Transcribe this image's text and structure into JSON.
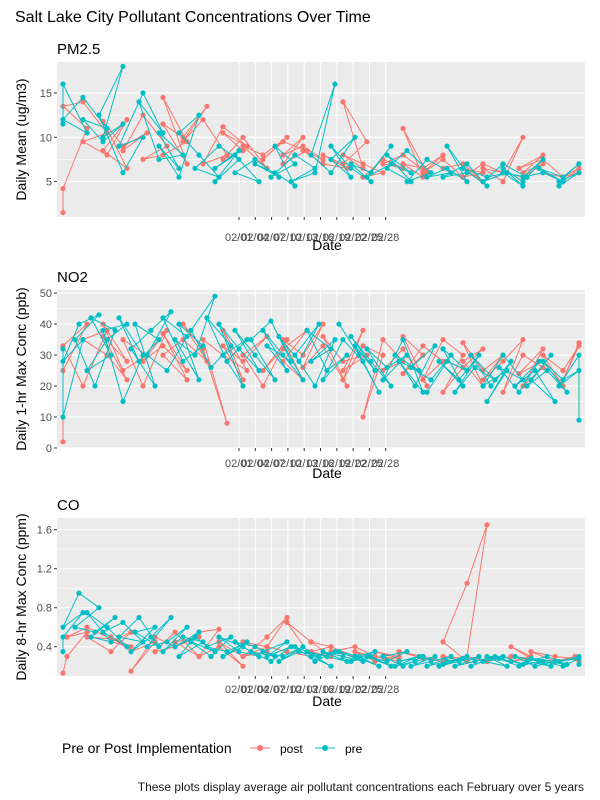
{
  "figure": {
    "title": "Salt Lake City Pollutant Concentrations Over Time",
    "caption": "These plots display average air pollutant concentrations each February over 5 years"
  },
  "legend": {
    "title": "Pre or Post Implementation",
    "entries": [
      {
        "label": "post",
        "color": "#F8766D"
      },
      {
        "label": "pre",
        "color": "#00BFC4"
      }
    ]
  },
  "colors": {
    "panel_bg": "#EBEBEB",
    "grid": "#FFFFFF",
    "post": "#F8766D",
    "pre": "#00BFC4"
  },
  "chart_data": [
    {
      "type": "line",
      "title": "PM2.5",
      "xlabel": "Date",
      "ylabel": "Daily Mean (ug/m3)",
      "ylim": [
        1,
        18.5
      ],
      "yticks": [
        5,
        10,
        15
      ],
      "x_tick_labels": [
        "02/01",
        "02/04",
        "02/07",
        "02/10",
        "02/13",
        "02/16",
        "02/19",
        "02/22",
        "02/25",
        "02/28"
      ],
      "x_tick_labels_visible": "02/0102/0402/0702/1002/1302/1602/1902/2202/2502/28",
      "n_points": 130,
      "series": [
        {
          "name": "post",
          "values": [
            1.5,
            4.2,
            11.0,
            13.5,
            14.0,
            10.5,
            9.5,
            8.0,
            12.0,
            8.5,
            6.5,
            11.8,
            9.0,
            10.5,
            8.5,
            12.5,
            9.0,
            7.5,
            8.0,
            9.5,
            14.5,
            7.0,
            11.5,
            10.0,
            13.5,
            9.5,
            12.0,
            8.0,
            7.0,
            11.2,
            9.0,
            10.5,
            8.5,
            7.5,
            10.0,
            6.5,
            9.0,
            8.0,
            10.0,
            7.5,
            9.5,
            8.5,
            7.0,
            10.0,
            8.0,
            9.0,
            7.5,
            8.5,
            7.0,
            6.5,
            8.0,
            7.0,
            9.5,
            14.0,
            6.5,
            8.0,
            7.0,
            6.0,
            5.5,
            7.5,
            6.5,
            7.0,
            8.0,
            6.0,
            11.0,
            5.5,
            7.0,
            6.5,
            8.0,
            6.0,
            7.5,
            5.5,
            6.5,
            7.0,
            5.0,
            6.5,
            6.0,
            5.5,
            7.0,
            6.0,
            6.5,
            5.0,
            10.0,
            6.0,
            5.5,
            7.0,
            6.0,
            8.0,
            6.5,
            7.5,
            5.5,
            6.0,
            5.0,
            6.5,
            5.5,
            6.0
          ]
        },
        {
          "name": "pre",
          "values": [
            11.5,
            16.0,
            10.5,
            12.0,
            14.5,
            11.0,
            12.0,
            9.5,
            11.5,
            10.0,
            18.0,
            12.5,
            6.0,
            10.0,
            9.0,
            15.0,
            10.5,
            14.0,
            7.5,
            8.0,
            10.5,
            6.5,
            9.0,
            5.5,
            12.5,
            10.5,
            8.0,
            5.5,
            6.5,
            9.0,
            7.5,
            5.0,
            8.5,
            6.5,
            8.0,
            5.0,
            6.0,
            7.5,
            5.5,
            7.0,
            6.0,
            4.5,
            9.0,
            7.0,
            5.5,
            8.0,
            6.5,
            5.0,
            6.0,
            16.0,
            8.0,
            6.0,
            10.0,
            7.5,
            5.5,
            9.0,
            6.5,
            5.0,
            7.0,
            6.0,
            9.0,
            5.5,
            7.0,
            6.0,
            8.0,
            5.0,
            6.5,
            8.5,
            6.0,
            5.0,
            7.5,
            6.0,
            5.5,
            6.5,
            5.0,
            9.0,
            6.0,
            5.5,
            7.0,
            4.5,
            6.5,
            5.5,
            6.0,
            5.0,
            7.0,
            5.5,
            6.0,
            4.5,
            6.5,
            5.0,
            7.5,
            5.5,
            6.0,
            5.0,
            6.5,
            5.5,
            7.0,
            5.0,
            6.0,
            4.5
          ]
        }
      ]
    },
    {
      "type": "line",
      "title": "NO2",
      "xlabel": "Date",
      "ylabel": "Daily 1-hr Max Conc (ppb)",
      "ylim": [
        0,
        51
      ],
      "yticks": [
        0,
        10,
        20,
        30,
        40,
        50
      ],
      "x_tick_labels": [
        "02/01",
        "02/04",
        "02/07",
        "02/10",
        "02/13",
        "02/16",
        "02/19",
        "02/22",
        "02/25",
        "02/28"
      ],
      "n_points": 130,
      "series": [
        {
          "name": "post",
          "values": [
            2,
            25,
            40,
            33,
            20,
            38,
            35,
            30,
            22,
            36,
            28,
            40,
            25,
            30,
            35,
            20,
            38,
            28,
            33,
            25,
            37,
            22,
            30,
            35,
            28,
            40,
            32,
            8,
            35,
            30,
            25,
            38,
            22,
            33,
            28,
            36,
            30,
            20,
            35,
            25,
            32,
            38,
            28,
            22,
            35,
            30,
            40,
            26,
            33,
            20,
            36,
            28,
            30,
            25,
            38,
            22,
            33,
            30,
            10,
            35,
            28,
            25,
            32,
            20,
            36,
            30,
            24,
            33,
            28,
            22,
            35,
            30,
            18,
            26,
            32,
            28,
            20,
            34,
            25,
            30,
            22,
            28,
            35,
            18,
            30,
            26,
            20,
            32,
            24,
            28,
            20,
            30,
            25,
            33,
            22,
            34
          ]
        },
        {
          "name": "pre",
          "values": [
            32,
            10,
            35,
            28,
            40,
            43,
            35,
            20,
            38,
            42,
            30,
            25,
            35,
            40,
            38,
            15,
            30,
            42,
            28,
            35,
            40,
            20,
            32,
            38,
            44,
            30,
            25,
            36,
            42,
            28,
            33,
            40,
            22,
            35,
            30,
            49,
            38,
            26,
            33,
            42,
            28,
            35,
            30,
            20,
            40,
            32,
            25,
            38,
            30,
            22,
            35,
            41,
            28,
            33,
            25,
            38,
            30,
            22,
            36,
            28,
            40,
            30,
            20,
            35,
            28,
            32,
            38,
            25,
            30,
            22,
            35,
            28,
            40,
            30,
            18,
            33,
            25,
            36,
            28,
            20,
            32,
            26,
            30,
            22,
            35,
            18,
            28,
            25,
            30,
            20,
            33,
            26,
            22,
            30,
            18,
            28,
            25,
            32,
            20,
            28,
            22,
            30,
            18,
            26,
            22,
            30,
            20,
            28,
            15,
            25,
            20,
            30,
            22,
            26,
            18,
            28,
            20,
            25,
            15,
            22,
            30,
            20,
            25,
            18,
            28,
            22,
            25,
            20,
            30,
            9
          ]
        }
      ]
    },
    {
      "type": "line",
      "title": "CO",
      "xlabel": "Date",
      "ylabel": "Daily 8-hr Max Conc (ppm)",
      "ylim": [
        0.1,
        1.72
      ],
      "yticks": [
        0.4,
        0.8,
        1.2,
        1.6
      ],
      "x_tick_labels": [
        "02/01",
        "02/04",
        "02/07",
        "02/10",
        "02/13",
        "02/16",
        "02/19",
        "02/22",
        "02/25",
        "02/28"
      ],
      "n_points": 130,
      "series": [
        {
          "name": "post",
          "values": [
            0.13,
            0.3,
            0.55,
            0.5,
            0.6,
            0.48,
            0.5,
            0.35,
            0.55,
            0.45,
            0.4,
            0.5,
            0.35,
            0.45,
            0.15,
            0.5,
            0.4,
            0.35,
            0.55,
            0.3,
            0.45,
            0.5,
            0.4,
            0.55,
            0.58,
            0.3,
            0.4,
            0.2,
            0.45,
            0.3,
            0.35,
            0.45,
            0.4,
            0.3,
            0.5,
            0.7,
            0.4,
            0.35,
            0.3,
            0.65,
            0.45,
            0.4,
            0.35,
            0.3,
            0.45,
            0.4,
            0.3,
            0.35,
            0.4,
            0.3,
            0.35,
            0.25,
            0.3,
            0.35,
            0.28,
            0.3,
            0.25,
            0.3,
            0.35,
            0.28,
            0.25,
            0.3,
            0.25,
            0.28,
            0.3,
            0.25,
            0.45,
            1.05,
            1.65,
            0.3,
            0.25,
            0.3,
            0.25,
            0.3,
            0.28,
            0.25,
            0.3,
            0.4,
            0.28,
            0.25,
            0.35,
            0.3,
            0.28,
            0.25,
            0.3,
            0.25
          ]
        },
        {
          "name": "pre",
          "values": [
            0.35,
            0.5,
            0.75,
            0.6,
            0.95,
            0.8,
            0.6,
            0.55,
            0.7,
            0.5,
            0.45,
            0.75,
            0.6,
            0.4,
            0.55,
            0.65,
            0.45,
            0.5,
            0.7,
            0.4,
            0.55,
            0.6,
            0.35,
            0.5,
            0.7,
            0.4,
            0.45,
            0.6,
            0.35,
            0.5,
            0.45,
            0.3,
            0.55,
            0.4,
            0.5,
            0.35,
            0.45,
            0.3,
            0.5,
            0.4,
            0.35,
            0.45,
            0.3,
            0.4,
            0.5,
            0.35,
            0.3,
            0.45,
            0.4,
            0.3,
            0.35,
            0.25,
            0.4,
            0.3,
            0.45,
            0.35,
            0.3,
            0.4,
            0.25,
            0.35,
            0.3,
            0.4,
            0.25,
            0.35,
            0.3,
            0.2,
            0.35,
            0.3,
            0.25,
            0.35,
            0.3,
            0.25,
            0.35,
            0.3,
            0.2,
            0.3,
            0.35,
            0.25,
            0.3,
            0.2,
            0.3,
            0.25,
            0.35,
            0.3,
            0.2,
            0.3,
            0.25,
            0.3,
            0.2,
            0.25,
            0.3,
            0.2,
            0.25,
            0.3,
            0.2,
            0.25,
            0.3,
            0.22,
            0.28,
            0.2,
            0.25,
            0.3,
            0.2,
            0.25,
            0.3,
            0.2,
            0.28,
            0.25,
            0.3,
            0.2,
            0.25,
            0.3,
            0.22,
            0.28,
            0.2,
            0.25,
            0.3,
            0.2,
            0.25,
            0.28,
            0.2,
            0.25,
            0.3,
            0.22,
            0.25,
            0.2,
            0.28,
            0.25,
            0.3,
            0.22
          ]
        }
      ]
    }
  ]
}
